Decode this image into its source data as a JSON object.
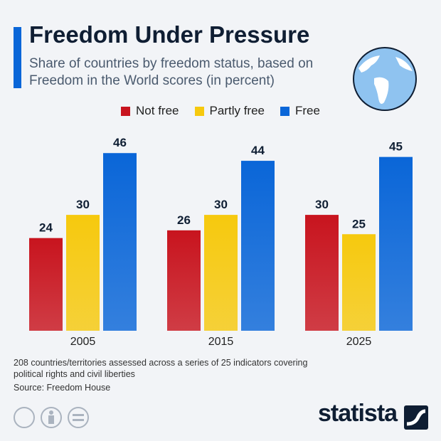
{
  "chart_data": {
    "type": "bar",
    "title": "Freedom Under Pressure",
    "subtitle": "Share of countries by freedom status, based on Freedom in the World scores (in percent)",
    "categories": [
      "2005",
      "2015",
      "2025"
    ],
    "series": [
      {
        "name": "Not free",
        "color": "#c8141e",
        "values": [
          24,
          26,
          30
        ]
      },
      {
        "name": "Partly free",
        "color": "#f6c90e",
        "values": [
          30,
          30,
          25
        ]
      },
      {
        "name": "Free",
        "color": "#0a66d8",
        "values": [
          46,
          44,
          45
        ]
      }
    ],
    "note": "208 countries/territories assessed across a series of 25 indicators covering political rights and civil liberties",
    "source": "Source: Freedom House",
    "brand": "statista"
  }
}
